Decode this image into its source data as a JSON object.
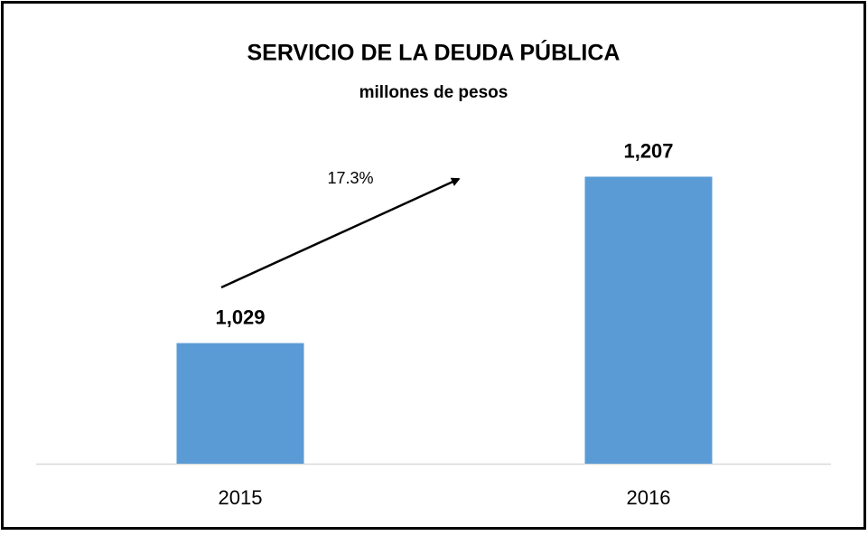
{
  "chart_data": {
    "type": "bar",
    "title": "SERVICIO DE LA DEUDA PÚBLICA",
    "subtitle": "millones de pesos",
    "annotation": "17.3%",
    "categories": [
      "2015",
      "2016"
    ],
    "values": [
      1029,
      1207
    ],
    "value_labels": [
      "1,029",
      "1,207"
    ],
    "color": "#5b9bd5",
    "ylim": [
      900,
      1250
    ]
  }
}
